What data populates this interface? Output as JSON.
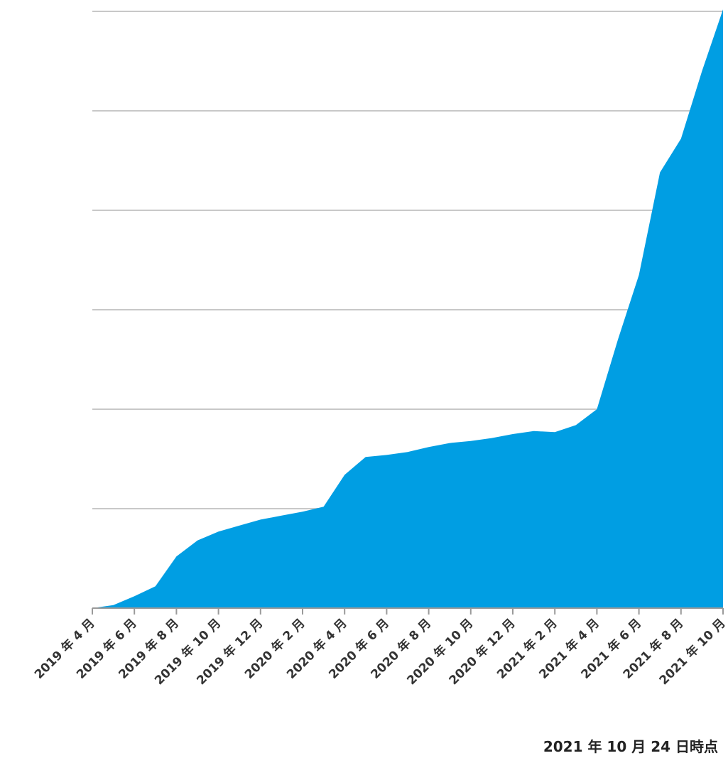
{
  "chart_data": {
    "type": "area",
    "title": "",
    "xlabel": "",
    "ylabel": "",
    "ylim": [
      0,
      6
    ],
    "grid": true,
    "colors": {
      "area": "#009ee3",
      "grid": "#c8c8c8",
      "axis": "#9a9a9a"
    },
    "x_ticks": [
      "2019 年 4 月",
      "2019 年 6 月",
      "2019 年 8 月",
      "2019 年 10 月",
      "2019 年 12 月",
      "2020 年 2 月",
      "2020 年 4 月",
      "2020 年 6 月",
      "2020 年 8 月",
      "2020 年 10 月",
      "2020 年 12 月",
      "2021 年 2 月",
      "2021 年 4 月",
      "2021 年 6 月",
      "2021 年 8 月",
      "2021 年 10 月"
    ],
    "series": [
      {
        "x": [
          0,
          0.5,
          1,
          1.5,
          2,
          2.5,
          3,
          3.5,
          4,
          4.5,
          5,
          5.5,
          6,
          6.5,
          7,
          7.5,
          8,
          8.5,
          9,
          9.5,
          10,
          10.5,
          11,
          11.5,
          12,
          12.5,
          13,
          13.5,
          14,
          14.5,
          15
        ],
        "values": [
          0,
          0.03,
          0.12,
          0.22,
          0.52,
          0.68,
          0.77,
          0.83,
          0.89,
          0.93,
          0.97,
          1.02,
          1.34,
          1.52,
          1.54,
          1.57,
          1.62,
          1.66,
          1.68,
          1.71,
          1.75,
          1.78,
          1.77,
          1.84,
          2.0,
          2.7,
          3.35,
          4.38,
          4.72,
          5.4,
          6.02
        ]
      }
    ]
  },
  "footnote": "2021 年 10 月 24 日時点"
}
